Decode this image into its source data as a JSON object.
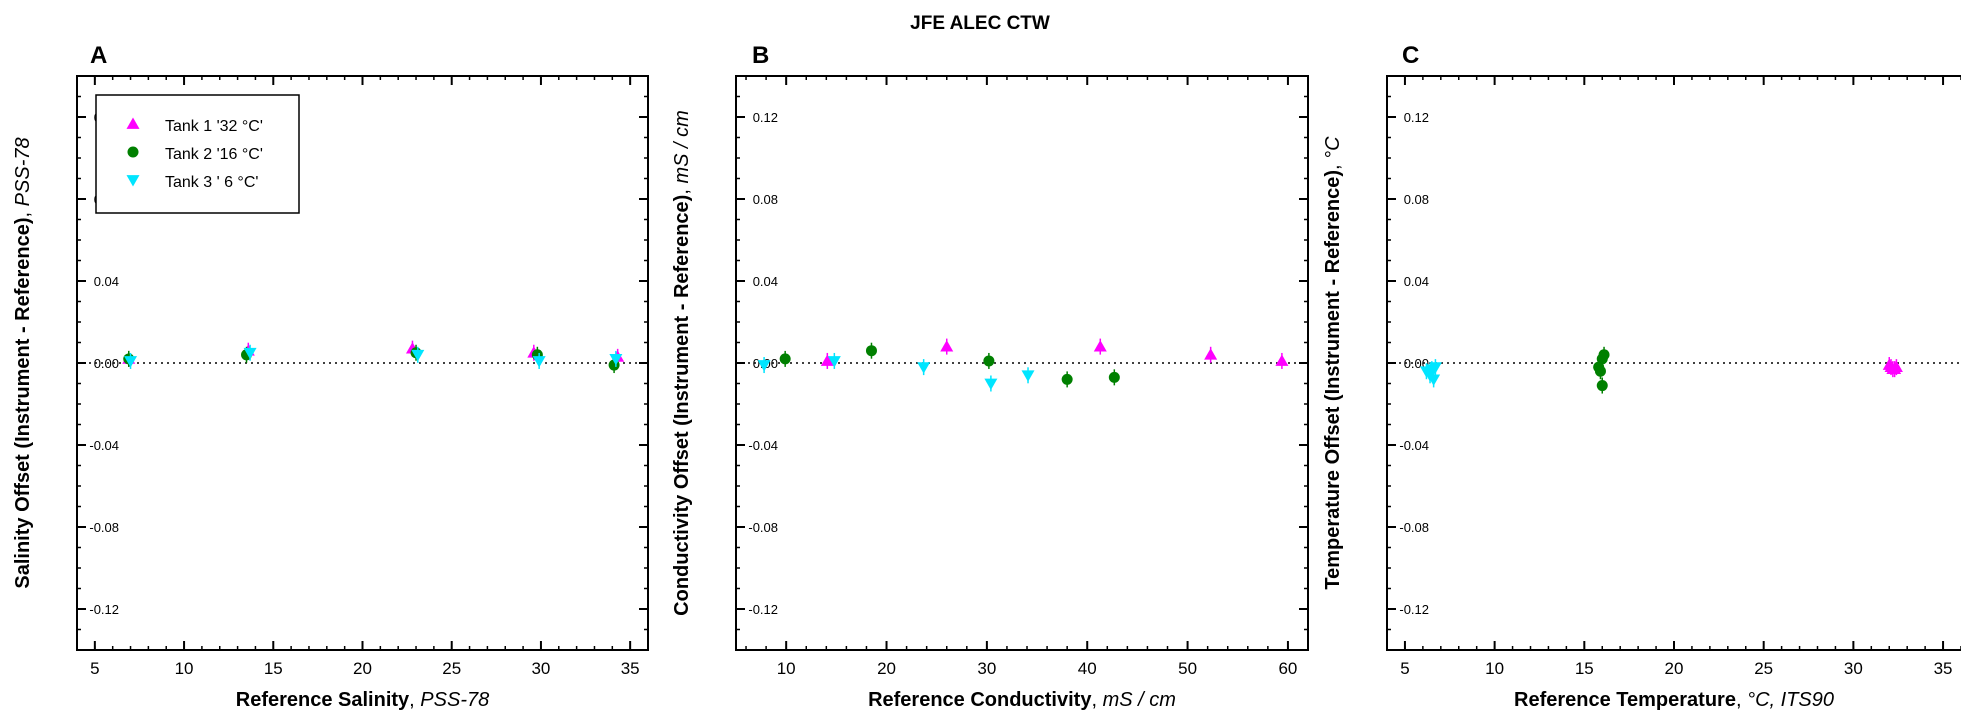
{
  "title": "JFE ALEC CTW",
  "legend": {
    "placement": "top-left of panel A",
    "entries": [
      {
        "label": "Tank 1 '32 °C'",
        "color": "#ff00ff",
        "marker": "triangle-up"
      },
      {
        "label": "Tank 2 '16 °C'",
        "color": "#008000",
        "marker": "circle"
      },
      {
        "label": "Tank 3 ' 6 °C'",
        "color": "#00e5ff",
        "marker": "triangle-down"
      }
    ]
  },
  "chart_data": [
    {
      "type": "scatter",
      "panel": "A",
      "xlabel_bold": "Reference Salinity",
      "xlabel_unit": "PSS-78",
      "ylabel_bold": "Salinity Offset (Instrument - Reference)",
      "ylabel_unit": "PSS-78",
      "xlim": [
        4,
        36
      ],
      "ylim": [
        -0.14,
        0.14
      ],
      "xticks": [
        "5",
        "10",
        "15",
        "20",
        "25",
        "30",
        "35"
      ],
      "yticks": [
        "-0.12",
        "-0.08",
        "-0.04",
        "0.00",
        "0.04",
        "0.08",
        "0.12"
      ],
      "series": [
        {
          "name": "Tank 1 '32 °C'",
          "x": [
            6.9,
            13.6,
            22.8,
            29.6,
            34.3
          ],
          "y": [
            0.002,
            0.006,
            0.007,
            0.005,
            0.003
          ]
        },
        {
          "name": "Tank 2 '16 °C'",
          "x": [
            6.9,
            13.5,
            23.0,
            29.8,
            34.1
          ],
          "y": [
            0.002,
            0.004,
            0.005,
            0.004,
            -0.001
          ]
        },
        {
          "name": "Tank 3 ' 6 °C'",
          "x": [
            7.0,
            13.7,
            23.1,
            29.9,
            34.2
          ],
          "y": [
            0.001,
            0.005,
            0.004,
            0.001,
            0.002
          ]
        }
      ]
    },
    {
      "type": "scatter",
      "panel": "B",
      "xlabel_bold": "Reference Conductivity",
      "xlabel_unit": "mS / cm",
      "ylabel_bold": "Conductivity Offset (Instrument - Reference)",
      "ylabel_unit": "mS / cm",
      "xlim": [
        5,
        62
      ],
      "ylim": [
        -0.14,
        0.14
      ],
      "xticks": [
        "10",
        "20",
        "30",
        "40",
        "50",
        "60"
      ],
      "yticks": [
        "-0.12",
        "-0.08",
        "-0.04",
        "0.00",
        "0.04",
        "0.08",
        "0.12"
      ],
      "series": [
        {
          "name": "Tank 1 '32 °C'",
          "x": [
            14.1,
            26.0,
            41.3,
            52.3,
            59.4
          ],
          "y": [
            0.001,
            0.008,
            0.008,
            0.004,
            0.001
          ]
        },
        {
          "name": "Tank 2 '16 °C'",
          "x": [
            9.9,
            18.5,
            30.2,
            38.0,
            42.7
          ],
          "y": [
            0.002,
            0.006,
            0.001,
            -0.008,
            -0.007
          ]
        },
        {
          "name": "Tank 3 ' 6 °C'",
          "x": [
            7.8,
            14.8,
            23.7,
            30.4,
            34.1
          ],
          "y": [
            -0.001,
            0.001,
            -0.002,
            -0.01,
            -0.006
          ]
        }
      ]
    },
    {
      "type": "scatter",
      "panel": "C",
      "xlabel_bold": "Reference Temperature",
      "xlabel_unit": "°C, ITS90",
      "ylabel_bold": "Temperature Offset (Instrument - Reference)",
      "ylabel_unit": "°C",
      "xlim": [
        4,
        36
      ],
      "ylim": [
        -0.14,
        0.14
      ],
      "xticks": [
        "5",
        "10",
        "15",
        "20",
        "25",
        "30",
        "35"
      ],
      "yticks": [
        "-0.12",
        "-0.08",
        "-0.04",
        "0.00",
        "0.04",
        "0.08",
        "0.12"
      ],
      "series": [
        {
          "name": "Tank 1 '32 °C'",
          "x": [
            32.0,
            32.1,
            32.2,
            32.3,
            32.4
          ],
          "y": [
            -0.001,
            -0.002,
            -0.003,
            -0.003,
            -0.002
          ]
        },
        {
          "name": "Tank 2 '16 °C'",
          "x": [
            15.8,
            15.9,
            16.0,
            16.0,
            16.1
          ],
          "y": [
            -0.002,
            -0.004,
            0.002,
            -0.011,
            0.004
          ]
        },
        {
          "name": "Tank 3 ' 6 °C'",
          "x": [
            6.2,
            6.4,
            6.5,
            6.6,
            6.7
          ],
          "y": [
            -0.004,
            -0.006,
            -0.003,
            -0.008,
            -0.002
          ]
        }
      ]
    }
  ]
}
